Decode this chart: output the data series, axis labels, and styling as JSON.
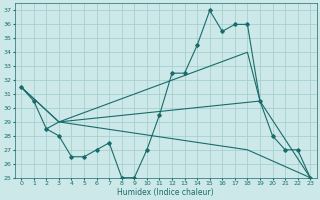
{
  "xlabel": "Humidex (Indice chaleur)",
  "xlim": [
    -0.5,
    23.5
  ],
  "ylim": [
    25,
    37.5
  ],
  "yticks": [
    25,
    26,
    27,
    28,
    29,
    30,
    31,
    32,
    33,
    34,
    35,
    36,
    37
  ],
  "xticks": [
    0,
    1,
    2,
    3,
    4,
    5,
    6,
    7,
    8,
    9,
    10,
    11,
    12,
    13,
    14,
    15,
    16,
    17,
    18,
    19,
    20,
    21,
    22,
    23
  ],
  "background_color": "#cde8e8",
  "grid_color": "#a0cccc",
  "line_color": "#1a6b6b",
  "line1_x": [
    0,
    1,
    2,
    3,
    4,
    5,
    6,
    7,
    8,
    9,
    10,
    11,
    12,
    13,
    14,
    15,
    16,
    17,
    18,
    19,
    20,
    21,
    22,
    23
  ],
  "line1_y": [
    31.5,
    30.5,
    28.5,
    28.0,
    26.5,
    26.5,
    27.0,
    27.5,
    25.0,
    25.0,
    27.0,
    29.5,
    32.5,
    32.5,
    34.5,
    37.0,
    35.5,
    36.0,
    36.0,
    30.5,
    28.0,
    27.0,
    27.0,
    25.0
  ],
  "line2_x": [
    0,
    3,
    19,
    23
  ],
  "line2_y": [
    31.5,
    29.0,
    30.5,
    25.0
  ],
  "line3_x": [
    0,
    3,
    18,
    19
  ],
  "line3_y": [
    31.5,
    29.0,
    34.0,
    30.5
  ],
  "line4_x": [
    2,
    3,
    18,
    23
  ],
  "line4_y": [
    28.5,
    29.0,
    27.0,
    25.0
  ]
}
